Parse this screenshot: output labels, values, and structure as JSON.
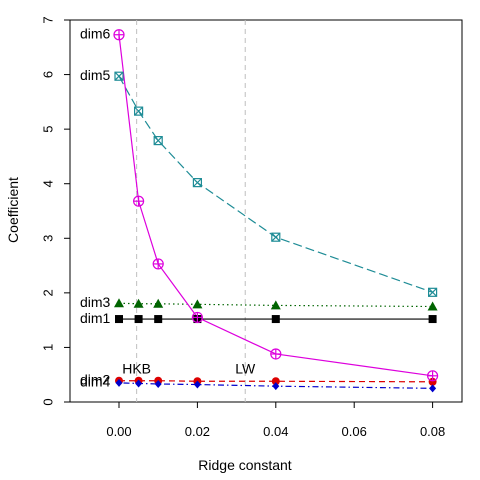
{
  "chart_data": {
    "type": "line",
    "xlabel": "Ridge constant",
    "ylabel": "Coefficient",
    "xlim": [
      -0.0125,
      0.0875
    ],
    "ylim": [
      0,
      7
    ],
    "x_ticks": [
      0.0,
      0.02,
      0.04,
      0.06,
      0.08
    ],
    "x_tick_labels": [
      "0.00",
      "0.02",
      "0.04",
      "0.06",
      "0.08"
    ],
    "y_ticks": [
      0,
      1,
      2,
      3,
      4,
      5,
      6,
      7
    ],
    "y_tick_labels": [
      "0",
      "1",
      "2",
      "3",
      "4",
      "5",
      "6",
      "7"
    ],
    "x": [
      0.0,
      0.005,
      0.01,
      0.02,
      0.04,
      0.08
    ],
    "grid": false,
    "reference_lines": [
      {
        "name": "HKB",
        "x": 0.0045,
        "label_y": 0.52
      },
      {
        "name": "LW",
        "x": 0.0322,
        "label_y": 0.52
      }
    ],
    "series": [
      {
        "name": "dim1",
        "color": "#000000",
        "line": "solid",
        "marker": "square-filled",
        "label_y": 1.52,
        "values": [
          1.52,
          1.52,
          1.52,
          1.52,
          1.52,
          1.52
        ]
      },
      {
        "name": "dim2",
        "color": "#dd0000",
        "line": "dashed",
        "marker": "circle-filled",
        "label_y": 0.39,
        "values": [
          0.39,
          0.39,
          0.39,
          0.38,
          0.38,
          0.37
        ]
      },
      {
        "name": "dim3",
        "color": "#006400",
        "line": "dotted",
        "marker": "triangle-filled",
        "label_y": 1.81,
        "values": [
          1.81,
          1.8,
          1.8,
          1.79,
          1.77,
          1.75
        ]
      },
      {
        "name": "dim4",
        "color": "#0000cc",
        "line": "dotdash",
        "marker": "diamond-filled",
        "label_y": 0.35,
        "values": [
          0.35,
          0.34,
          0.33,
          0.32,
          0.29,
          0.25
        ]
      },
      {
        "name": "dim5",
        "color": "#1e8c96",
        "line": "longdash",
        "marker": "square-x",
        "label_y": 5.97,
        "values": [
          5.97,
          5.33,
          4.79,
          4.02,
          3.02,
          2.01
        ]
      },
      {
        "name": "dim6",
        "color": "#dd00dd",
        "line": "solid",
        "marker": "circle-plus",
        "label_y": 6.73,
        "values": [
          6.73,
          3.68,
          2.53,
          1.55,
          0.88,
          0.48
        ]
      }
    ]
  }
}
